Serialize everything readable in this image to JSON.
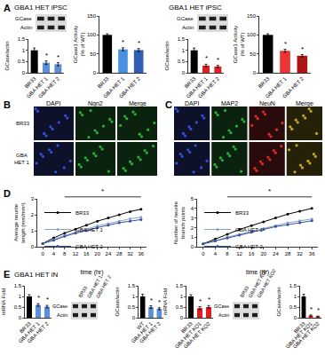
{
  "chart_data": [
    {
      "type": "bar",
      "ylabel": "GCase/actin",
      "categories": [
        "BR33",
        "GBA HET 1",
        "GBA HET 2"
      ],
      "values": [
        1.0,
        0.45,
        0.38
      ],
      "errors": [
        0.1,
        0.08,
        0.07
      ],
      "colors": [
        "#000000",
        "#5b8fd8",
        "#5b8fd8"
      ],
      "ylim": [
        0,
        1.5
      ],
      "yticks": [
        0,
        0.5,
        1,
        1.5
      ],
      "annotations": [
        {
          "category": "GBA HET 1",
          "text": "*"
        },
        {
          "category": "GBA HET 2",
          "text": "*"
        }
      ]
    },
    {
      "type": "bar",
      "ylabel": "GCase1 Activity (% of WT)",
      "categories": [
        "BR33",
        "GBA HET 1",
        "GBA HET 2"
      ],
      "values": [
        100,
        62,
        60
      ],
      "errors": [
        3,
        4,
        4
      ],
      "colors": [
        "#000000",
        "#4a90e2",
        "#2f5fb3"
      ],
      "ylim": [
        0,
        150
      ],
      "yticks": [
        0,
        50,
        100,
        150
      ],
      "annotations": [
        {
          "category": "GBA HET 1",
          "text": "*"
        },
        {
          "category": "GBA HET 2",
          "text": "*"
        }
      ]
    },
    {
      "type": "bar",
      "ylabel": "GCase/actin",
      "categories": [
        "BR33",
        "GBA HET 1",
        "GBA HET 2"
      ],
      "values": [
        1.0,
        0.32,
        0.28
      ],
      "errors": [
        0.1,
        0.06,
        0.05
      ],
      "colors": [
        "#000000",
        "#e02020",
        "#e02020"
      ],
      "ylim": [
        0,
        1.5
      ],
      "yticks": [
        0,
        0.5,
        1,
        1.5
      ],
      "annotations": [
        {
          "category": "GBA HET 1",
          "text": "*"
        },
        {
          "category": "GBA HET 2",
          "text": "*"
        }
      ]
    },
    {
      "type": "bar",
      "ylabel": "GCase1 Activity (% of WT)",
      "categories": [
        "BR33",
        "GBA HET 1",
        "GBA HET 2"
      ],
      "values": [
        100,
        58,
        45
      ],
      "errors": [
        3,
        4,
        3
      ],
      "colors": [
        "#000000",
        "#ee3333",
        "#b01515"
      ],
      "ylim": [
        0,
        150
      ],
      "yticks": [
        0,
        50,
        100,
        150
      ],
      "annotations": [
        {
          "category": "GBA HET 1",
          "text": "*"
        },
        {
          "category": "GBA HET 2",
          "text": "*"
        }
      ]
    },
    {
      "type": "line",
      "xlabel": "time (hr)",
      "ylabel": "Average neurite length (mm/mm²)",
      "x": [
        0,
        4,
        8,
        12,
        16,
        20,
        24,
        28,
        32,
        36
      ],
      "xlim": [
        -2,
        38
      ],
      "xticks": [
        0,
        4,
        8,
        12,
        16,
        20,
        24,
        28,
        32,
        36
      ],
      "ylim": [
        0,
        3
      ],
      "yticks": [
        0,
        1,
        2,
        3
      ],
      "legend": "top left",
      "marker": "circle",
      "significance": {
        "text": "*",
        "x": [
          8,
          36
        ]
      },
      "series": [
        {
          "name": "BR33",
          "color": "#000000",
          "values": [
            0.2,
            0.55,
            0.85,
            1.1,
            1.35,
            1.6,
            1.8,
            2.0,
            2.2,
            2.35
          ]
        },
        {
          "name": "GBA HET 1",
          "color": "#8aa0c8",
          "values": [
            0.2,
            0.45,
            0.7,
            0.9,
            1.1,
            1.3,
            1.45,
            1.6,
            1.75,
            1.85
          ]
        },
        {
          "name": "GBA HET 2",
          "color": "#3050a0",
          "values": [
            0.2,
            0.4,
            0.65,
            0.85,
            1.0,
            1.2,
            1.35,
            1.5,
            1.6,
            1.7
          ]
        }
      ]
    },
    {
      "type": "line",
      "xlabel": "time (hr)",
      "ylabel": "Number of neurite branch points",
      "x": [
        0,
        4,
        8,
        12,
        16,
        20,
        24,
        28,
        32,
        36
      ],
      "xlim": [
        -2,
        38
      ],
      "xticks": [
        0,
        4,
        8,
        12,
        16,
        20,
        24,
        28,
        32,
        36
      ],
      "ylim": [
        0,
        5
      ],
      "yticks": [
        0,
        1,
        2,
        3,
        4,
        5
      ],
      "legend": "top left",
      "marker": "circle",
      "significance": {
        "text": "*",
        "x": [
          8,
          36
        ]
      },
      "series": [
        {
          "name": "BR33",
          "color": "#000000",
          "values": [
            0.3,
            0.8,
            1.3,
            1.8,
            2.2,
            2.6,
            3.0,
            3.4,
            3.7,
            4.0
          ]
        },
        {
          "name": "GBA HET 1",
          "color": "#8aa0c8",
          "values": [
            0.3,
            0.6,
            1.0,
            1.3,
            1.6,
            1.9,
            2.2,
            2.5,
            2.7,
            2.9
          ]
        },
        {
          "name": "GBA HET 2",
          "color": "#3050a0",
          "values": [
            0.3,
            0.6,
            0.9,
            1.2,
            1.5,
            1.8,
            2.1,
            2.3,
            2.5,
            2.7
          ]
        }
      ]
    },
    {
      "type": "bar",
      "ylabel": "mRNA Fold",
      "categories": [
        "BR33",
        "GBA HET 1",
        "GBA HET 2"
      ],
      "values": [
        1.0,
        0.6,
        0.52
      ],
      "errors": [
        0.08,
        0.06,
        0.06
      ],
      "colors": [
        "#000000",
        "#5b8fd8",
        "#5b8fd8"
      ],
      "ylim": [
        0,
        1.5
      ],
      "yticks": [
        0,
        0.5,
        1,
        1.5
      ],
      "annotations": [
        {
          "category": "GBA HET 1",
          "text": "*"
        },
        {
          "category": "GBA HET 2",
          "text": "*"
        }
      ]
    },
    {
      "type": "bar",
      "ylabel": "GCase/actin",
      "categories": [
        "WT",
        "GBA HET 1",
        "GBA HET 2"
      ],
      "values": [
        1.0,
        0.5,
        0.42
      ],
      "errors": [
        0.1,
        0.06,
        0.05
      ],
      "colors": [
        "#000000",
        "#5b8fd8",
        "#5b8fd8"
      ],
      "ylim": [
        0,
        1.5
      ],
      "yticks": [
        0,
        0.5,
        1,
        1.5
      ],
      "annotations": [
        {
          "category": "GBA HET 1",
          "text": "*"
        },
        {
          "category": "GBA HET 2",
          "text": "*"
        }
      ]
    },
    {
      "type": "bar",
      "ylabel": "mRNA Fold",
      "categories": [
        "BR33",
        "GBA HET KO1",
        "GBA HET KO2"
      ],
      "values": [
        1.0,
        0.45,
        0.5
      ],
      "errors": [
        0.08,
        0.07,
        0.07
      ],
      "colors": [
        "#000000",
        "#e02020",
        "#e02020"
      ],
      "ylim": [
        0,
        1.5
      ],
      "yticks": [
        0,
        0.5,
        1,
        1.5
      ],
      "annotations": [
        {
          "category": "GBA HET KO1",
          "text": "*"
        },
        {
          "category": "GBA HET KO2",
          "text": "*"
        }
      ]
    },
    {
      "type": "bar",
      "ylabel": "GCase/actin",
      "categories": [
        "BR33",
        "GBA HET KO1",
        "GBA HET KO2"
      ],
      "values": [
        1.0,
        0.1,
        0.06
      ],
      "errors": [
        0.1,
        0.03,
        0.02
      ],
      "colors": [
        "#000000",
        "#e02020",
        "#e02020"
      ],
      "ylim": [
        0,
        1.5
      ],
      "yticks": [
        0,
        0.5,
        1,
        1.5
      ],
      "annotations": [
        {
          "category": "GBA HET KO1",
          "text": "*"
        },
        {
          "category": "GBA HET KO2",
          "text": "*"
        }
      ]
    }
  ],
  "panels": [
    {
      "letter": "A",
      "titles": [
        "GBA1 HET iPSC",
        "GBA1 HET iPSC"
      ],
      "blots": [
        {
          "rows": [
            "GCase",
            "Actin"
          ]
        },
        {
          "rows": [
            "GCase",
            "Actin"
          ]
        }
      ]
    },
    {
      "letter": "B",
      "rows": [
        "BR33",
        "GBA HET 1"
      ],
      "columns": [
        {
          "label": "DAPI",
          "color": "#3a5cff"
        },
        {
          "label": "Ngn2",
          "color": "#2ecc40"
        },
        {
          "label": "Merge",
          "color": "#2ecc40"
        }
      ]
    },
    {
      "letter": "C",
      "columns": [
        {
          "label": "DAPI",
          "color": "#3a5cff"
        },
        {
          "label": "MAP2",
          "color": "#2ecc40"
        },
        {
          "label": "NeuN",
          "color": "#ff3030"
        },
        {
          "label": "Merge",
          "color": "#e0c020"
        }
      ]
    },
    {
      "letter": "D"
    },
    {
      "letter": "E",
      "title": "GBA1 HET iN",
      "blots": [
        {
          "lanes": [
            "BR33",
            "GBA HET 1",
            "GBA HET 2"
          ],
          "rows": [
            "GCase",
            "Actin"
          ]
        },
        {
          "lanes": [
            "BR33",
            "GBA HET KO1",
            "GBA HET KO2"
          ],
          "rows": [
            "GCase",
            "Actin"
          ]
        }
      ]
    }
  ]
}
